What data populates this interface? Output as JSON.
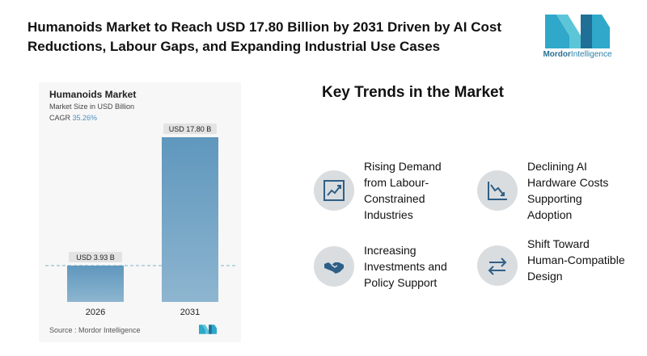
{
  "header": {
    "title": "Humanoids Market to Reach USD 17.80 Billion by 2031 Driven by AI Cost Reductions, Labour Gaps, and Expanding Industrial Use Cases"
  },
  "logo": {
    "brand_bold": "Mordor",
    "brand_rest": "Intelligence",
    "colors": [
      "#2fa8c9",
      "#1f6f96"
    ]
  },
  "chart_panel": {
    "title": "Humanoids Market",
    "subtitle": "Market Size in USD Billion",
    "cagr_label": "CAGR",
    "cagr_value": "35.26%",
    "source": "Source :  Mordor Intelligence"
  },
  "chart_data": {
    "type": "bar",
    "title": "Humanoids Market",
    "ylabel": "Market Size in USD Billion",
    "categories": [
      "2026",
      "2031"
    ],
    "values": [
      3.93,
      17.8
    ],
    "data_labels": [
      "USD 3.93 B",
      "USD 17.80 B"
    ],
    "ylim": [
      0,
      17.8
    ],
    "grid": false,
    "colors": {
      "bar_top": "#5f97bd",
      "bar_bottom": "#8db5d0",
      "reference_line": "#7fb0c8"
    }
  },
  "trends": {
    "title": "Key Trends in the Market",
    "items": [
      {
        "label": "Rising Demand from Labour-Constrained Industries",
        "icon": "rising-line-chart-icon"
      },
      {
        "label": "Declining AI Hardware Costs Supporting Adoption",
        "icon": "declining-line-chart-icon"
      },
      {
        "label": "Increasing Investments and Policy Support",
        "icon": "handshake-icon"
      },
      {
        "label": "Shift Toward Human-Compatible Design",
        "icon": "swap-arrows-icon"
      }
    ]
  }
}
